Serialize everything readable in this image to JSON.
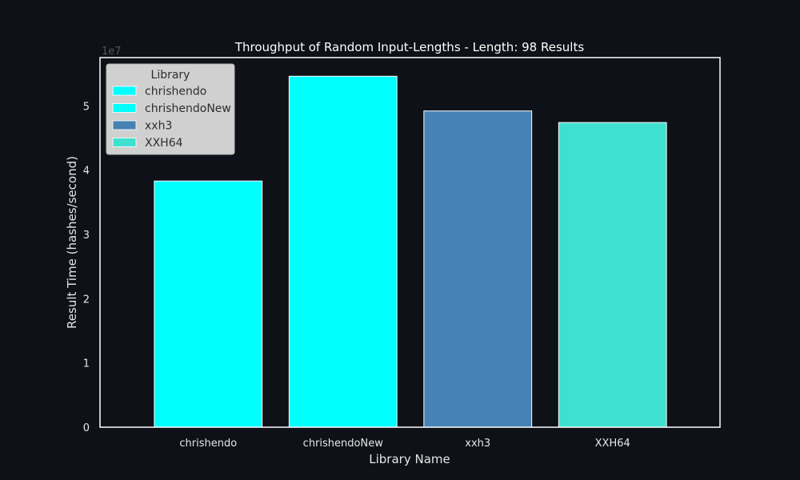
{
  "chart_data": {
    "type": "bar",
    "title": "Throughput of Random Input-Lengths - Length: 98 Results",
    "xlabel": "Library Name",
    "ylabel": "Result Time (hashes/second)",
    "y_offset_label": "1e7",
    "categories": [
      "chrishendo",
      "chrishendoNew",
      "xxh3",
      "XXH64"
    ],
    "values": [
      38300000,
      54600000,
      49200000,
      47400000
    ],
    "colors": [
      "#00ffff",
      "#00ffff",
      "#4682b4",
      "#40e0d0"
    ],
    "ylim": [
      0,
      57500000
    ],
    "yticks": [
      0,
      10000000,
      20000000,
      30000000,
      40000000,
      50000000
    ],
    "ytick_labels": [
      "0",
      "1",
      "2",
      "3",
      "4",
      "5"
    ],
    "grid": false,
    "legend": {
      "title": "Library",
      "placement": "top-left",
      "entries": [
        {
          "label": "chrishendo",
          "color": "#00ffff"
        },
        {
          "label": "chrishendoNew",
          "color": "#00ffff"
        },
        {
          "label": "xxh3",
          "color": "#4682b4"
        },
        {
          "label": "XXH64",
          "color": "#40e0d0"
        }
      ]
    },
    "colors_theme": {
      "background": "#0e1117",
      "text": "#e6e6e6",
      "axes_edge": "#ffffff",
      "legend_bg": "#d0d0d0",
      "legend_text": "#2e2e2e",
      "offset_label": "#555555"
    }
  }
}
